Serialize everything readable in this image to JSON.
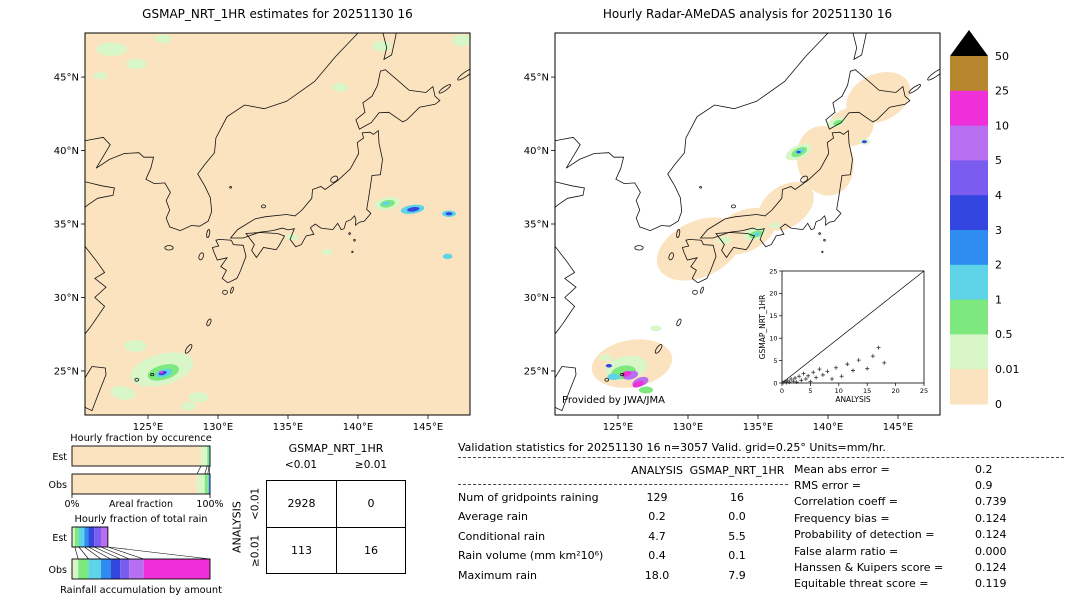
{
  "colors": {
    "peach": "#fbe3bf",
    "palegreen": "#d9f6c8",
    "green": "#7de87d",
    "cyan": "#5fd4e8",
    "lightblue": "#2e8cf0",
    "blue": "#3347e0",
    "purple": "#7a5cf0",
    "violet": "#b76ef0",
    "magenta": "#ef2fd8",
    "gold": "#b8862c",
    "overflow": "#000000"
  },
  "chart_data": [
    {
      "type": "heatmap",
      "name": "gsmap_map",
      "title": "GSMAP_NRT_1HR estimates for 20251130 16",
      "background": "peach",
      "lat_ticks": [
        {
          "v": 45,
          "label": "45°N"
        },
        {
          "v": 40,
          "label": "40°N"
        },
        {
          "v": 35,
          "label": "35°N"
        },
        {
          "v": 30,
          "label": "30°N"
        },
        {
          "v": 25,
          "label": "25°N"
        }
      ],
      "lon_ticks": [
        {
          "v": 125,
          "label": "125°E"
        },
        {
          "v": 130,
          "label": "130°E"
        },
        {
          "v": 135,
          "label": "135°E"
        },
        {
          "v": 140,
          "label": "140°E"
        },
        {
          "v": 145,
          "label": "145°E"
        }
      ],
      "units": "mm/hr",
      "cells": [
        [
          126.0,
          25.1,
          2.3,
          1.05,
          -15,
          "palegreen"
        ],
        [
          124.1,
          26.7,
          0.8,
          0.4,
          0,
          "palegreen"
        ],
        [
          123.2,
          23.5,
          0.9,
          0.45,
          10,
          "palegreen"
        ],
        [
          128.6,
          23.2,
          0.7,
          0.35,
          0,
          "palegreen"
        ],
        [
          127.9,
          22.6,
          0.5,
          0.3,
          0,
          "palegreen"
        ],
        [
          126.1,
          24.9,
          1.15,
          0.5,
          -15,
          "green"
        ],
        [
          126.15,
          24.85,
          0.6,
          0.26,
          -15,
          "cyan"
        ],
        [
          126.05,
          24.85,
          0.3,
          0.13,
          -15,
          "blue"
        ],
        [
          125.95,
          24.9,
          0.16,
          0.08,
          0,
          "magenta"
        ],
        [
          122.4,
          46.9,
          1.1,
          0.45,
          0,
          "palegreen"
        ],
        [
          124.2,
          45.9,
          0.75,
          0.35,
          0,
          "palegreen"
        ],
        [
          121.6,
          45.1,
          0.5,
          0.25,
          0,
          "palegreen"
        ],
        [
          126.1,
          47.6,
          0.6,
          0.3,
          0,
          "palegreen"
        ],
        [
          138.7,
          44.3,
          0.55,
          0.3,
          0,
          "palegreen"
        ],
        [
          141.7,
          47.1,
          0.7,
          0.35,
          0,
          "palegreen"
        ],
        [
          147.4,
          47.5,
          0.7,
          0.4,
          0,
          "palegreen"
        ],
        [
          142.1,
          36.4,
          0.95,
          0.42,
          -10,
          "palegreen"
        ],
        [
          142.1,
          36.38,
          0.55,
          0.25,
          -10,
          "green"
        ],
        [
          142.0,
          36.4,
          0.3,
          0.13,
          -10,
          "cyan"
        ],
        [
          143.9,
          36.0,
          0.85,
          0.3,
          -8,
          "cyan"
        ],
        [
          143.95,
          36.0,
          0.45,
          0.15,
          -8,
          "blue"
        ],
        [
          146.5,
          35.7,
          0.5,
          0.22,
          0,
          "cyan"
        ],
        [
          146.5,
          35.7,
          0.25,
          0.11,
          0,
          "blue"
        ],
        [
          146.4,
          32.8,
          0.35,
          0.18,
          0,
          "cyan"
        ],
        [
          135.3,
          34.1,
          0.45,
          0.22,
          0,
          "palegreen"
        ],
        [
          137.8,
          33.1,
          0.4,
          0.2,
          0,
          "palegreen"
        ]
      ]
    },
    {
      "type": "heatmap",
      "name": "radar_amedas_map",
      "title": "Hourly Radar-AMeDAS analysis for 20251130 16",
      "credit": "Provided by JWA/JMA",
      "background": "white",
      "lat_ticks": [
        {
          "v": 45,
          "label": "45°N"
        },
        {
          "v": 40,
          "label": "40°N"
        },
        {
          "v": 35,
          "label": "35°N"
        },
        {
          "v": 30,
          "label": "30°N"
        },
        {
          "v": 25,
          "label": "25°N"
        }
      ],
      "lon_ticks": [
        {
          "v": 125,
          "label": "125°E"
        },
        {
          "v": 130,
          "label": "130°E"
        },
        {
          "v": 135,
          "label": "135°E"
        },
        {
          "v": 140,
          "label": "140°E"
        },
        {
          "v": 145,
          "label": "145°E"
        }
      ],
      "units": "mm/hr",
      "cells": [
        [
          130.8,
          33.3,
          3.2,
          1.9,
          -25,
          "peach"
        ],
        [
          134.0,
          34.5,
          2.4,
          1.4,
          -25,
          "peach"
        ],
        [
          137.0,
          36.2,
          2.2,
          1.4,
          -35,
          "peach"
        ],
        [
          139.8,
          39.3,
          2.0,
          2.4,
          -15,
          "peach"
        ],
        [
          141.6,
          41.6,
          1.7,
          1.3,
          -20,
          "peach"
        ],
        [
          143.6,
          43.6,
          2.4,
          1.6,
          -25,
          "peach"
        ],
        [
          126.0,
          25.5,
          2.9,
          1.6,
          -10,
          "peach"
        ],
        [
          125.6,
          25.2,
          1.5,
          0.8,
          -10,
          "palegreen"
        ],
        [
          125.4,
          24.9,
          0.9,
          0.45,
          -10,
          "green"
        ],
        [
          124.7,
          24.6,
          0.45,
          0.22,
          0,
          "cyan"
        ],
        [
          124.35,
          25.35,
          0.22,
          0.12,
          0,
          "blue"
        ],
        [
          125.9,
          24.7,
          0.55,
          0.28,
          -15,
          "violet"
        ],
        [
          125.6,
          24.8,
          0.35,
          0.18,
          -15,
          "magenta"
        ],
        [
          126.6,
          24.25,
          0.6,
          0.3,
          -20,
          "violet"
        ],
        [
          126.45,
          24.1,
          0.42,
          0.2,
          -20,
          "magenta"
        ],
        [
          127.0,
          23.7,
          0.5,
          0.24,
          0,
          "green"
        ],
        [
          124.15,
          25.9,
          0.45,
          0.22,
          0,
          "palegreen"
        ],
        [
          127.7,
          27.9,
          0.4,
          0.2,
          0,
          "palegreen"
        ],
        [
          137.9,
          39.9,
          1.0,
          0.45,
          -25,
          "palegreen"
        ],
        [
          137.95,
          39.9,
          0.6,
          0.28,
          -25,
          "green"
        ],
        [
          138.0,
          39.95,
          0.32,
          0.14,
          -25,
          "cyan"
        ],
        [
          137.9,
          39.9,
          0.16,
          0.08,
          0,
          "blue"
        ],
        [
          140.6,
          41.9,
          0.7,
          0.3,
          -20,
          "palegreen"
        ],
        [
          140.7,
          41.9,
          0.35,
          0.16,
          -20,
          "green"
        ],
        [
          142.6,
          40.6,
          0.4,
          0.2,
          0,
          "palegreen"
        ],
        [
          142.6,
          40.6,
          0.18,
          0.1,
          0,
          "blue"
        ],
        [
          134.8,
          34.35,
          0.85,
          0.4,
          -15,
          "palegreen"
        ],
        [
          134.85,
          34.3,
          0.5,
          0.22,
          -15,
          "green"
        ],
        [
          134.9,
          34.3,
          0.25,
          0.12,
          -15,
          "cyan"
        ],
        [
          136.2,
          34.9,
          0.4,
          0.2,
          0,
          "palegreen"
        ],
        [
          132.6,
          33.9,
          0.5,
          0.25,
          0,
          "palegreen"
        ]
      ],
      "inset": {
        "type": "scatter",
        "xlabel": "ANALYSIS",
        "ylabel": "GSMAP_NRT_1HR",
        "xlim": [
          0,
          25
        ],
        "ylim": [
          0,
          25
        ],
        "ticks": [
          0,
          5,
          10,
          15,
          20,
          25
        ],
        "points": [
          [
            0.2,
            0.1
          ],
          [
            0.5,
            0.3
          ],
          [
            0.8,
            0.1
          ],
          [
            1,
            0.5
          ],
          [
            1.3,
            0.2
          ],
          [
            1.6,
            0.9
          ],
          [
            2,
            0.4
          ],
          [
            2.3,
            1.1
          ],
          [
            2.6,
            0.2
          ],
          [
            3,
            1.5
          ],
          [
            3.4,
            0.6
          ],
          [
            3.8,
            2.1
          ],
          [
            4.2,
            0.9
          ],
          [
            4.6,
            1.6
          ],
          [
            5,
            0.3
          ],
          [
            5.5,
            2.4
          ],
          [
            6,
            1.2
          ],
          [
            6.6,
            3.1
          ],
          [
            7.2,
            1.8
          ],
          [
            8,
            2.6
          ],
          [
            8.8,
            0.9
          ],
          [
            9.5,
            3.4
          ],
          [
            10.5,
            1.5
          ],
          [
            11.5,
            4.2
          ],
          [
            12.5,
            2.8
          ],
          [
            13.5,
            5.1
          ],
          [
            15,
            3.2
          ],
          [
            16,
            6.0
          ],
          [
            17,
            7.9
          ],
          [
            18,
            4.5
          ]
        ]
      }
    },
    {
      "type": "bar",
      "name": "hourly_fraction_by_occurrence",
      "title": "Hourly fraction by occurence",
      "row_labels": [
        "Est",
        "Obs"
      ],
      "x_axis": {
        "left": "0%",
        "label": "Areal fraction",
        "right": "100%"
      },
      "series": {
        "Est": [
          [
            "peach",
            0.935
          ],
          [
            "palegreen",
            0.045
          ],
          [
            "green",
            0.013
          ],
          [
            "cyan",
            0.007
          ]
        ],
        "Obs": [
          [
            "peach",
            0.905
          ],
          [
            "palegreen",
            0.057
          ],
          [
            "green",
            0.022
          ],
          [
            "cyan",
            0.011
          ],
          [
            "lightblue",
            0.005
          ]
        ]
      }
    },
    {
      "type": "bar",
      "name": "hourly_fraction_of_total_rain",
      "title": "Hourly fraction of total rain",
      "row_labels": [
        "Est",
        "Obs"
      ],
      "footer": "Rainfall accumulation by amount",
      "series": {
        "Est": [
          [
            "palegreen",
            0.02
          ],
          [
            "green",
            0.03
          ],
          [
            "cyan",
            0.04
          ],
          [
            "lightblue",
            0.03
          ],
          [
            "blue",
            0.04
          ],
          [
            "purple",
            0.05
          ],
          [
            "violet",
            0.05
          ]
        ],
        "Obs": [
          [
            "palegreen",
            0.045
          ],
          [
            "green",
            0.075
          ],
          [
            "cyan",
            0.09
          ],
          [
            "lightblue",
            0.07
          ],
          [
            "blue",
            0.07
          ],
          [
            "purple",
            0.065
          ],
          [
            "violet",
            0.105
          ],
          [
            "magenta",
            0.48
          ]
        ]
      }
    },
    {
      "type": "table",
      "name": "contingency_table",
      "col_header": "GSMAP_NRT_1HR",
      "row_header": "ANALYSIS",
      "col_labels": [
        "<0.01",
        "≥0.01"
      ],
      "row_labels": [
        "<0.01",
        "≥0.01"
      ],
      "values": [
        [
          "2928",
          "0"
        ],
        [
          "113",
          "16"
        ]
      ]
    },
    {
      "type": "table",
      "name": "validation_statistics",
      "header": "Validation statistics for 20251130 16  n=3057 Valid. grid=0.25° Units=mm/hr.",
      "columns": [
        "ANALYSIS",
        "GSMAP_NRT_1HR"
      ],
      "rows": [
        [
          "Num of gridpoints raining",
          "129",
          "16"
        ],
        [
          "Average rain",
          "0.2",
          "0.0"
        ],
        [
          "Conditional rain",
          "4.7",
          "5.5"
        ],
        [
          "Rain volume (mm km²10⁶)",
          "0.4",
          "0.1"
        ],
        [
          "Maximum rain",
          "18.0",
          "7.9"
        ]
      ],
      "metrics": [
        [
          "Mean abs error =",
          "0.2"
        ],
        [
          "RMS error =",
          "0.9"
        ],
        [
          "Correlation coeff =",
          "0.739"
        ],
        [
          "Frequency bias =",
          "0.124"
        ],
        [
          "Probability of detection =",
          "0.124"
        ],
        [
          "False alarm ratio =",
          "0.000"
        ],
        [
          "Hanssen & Kuipers score =",
          "0.124"
        ],
        [
          "Equitable threat score =",
          "0.119"
        ]
      ]
    },
    {
      "type": "legend",
      "name": "colorbar",
      "unit_values": [
        "50",
        "25",
        "10",
        "5",
        "4",
        "3",
        "2",
        "1",
        "0.5",
        "0.01",
        "0"
      ],
      "segment_colors": [
        "gold",
        "magenta",
        "violet",
        "purple",
        "blue",
        "lightblue",
        "cyan",
        "green",
        "palegreen",
        "peach"
      ],
      "overflow_color": "#000000"
    }
  ]
}
